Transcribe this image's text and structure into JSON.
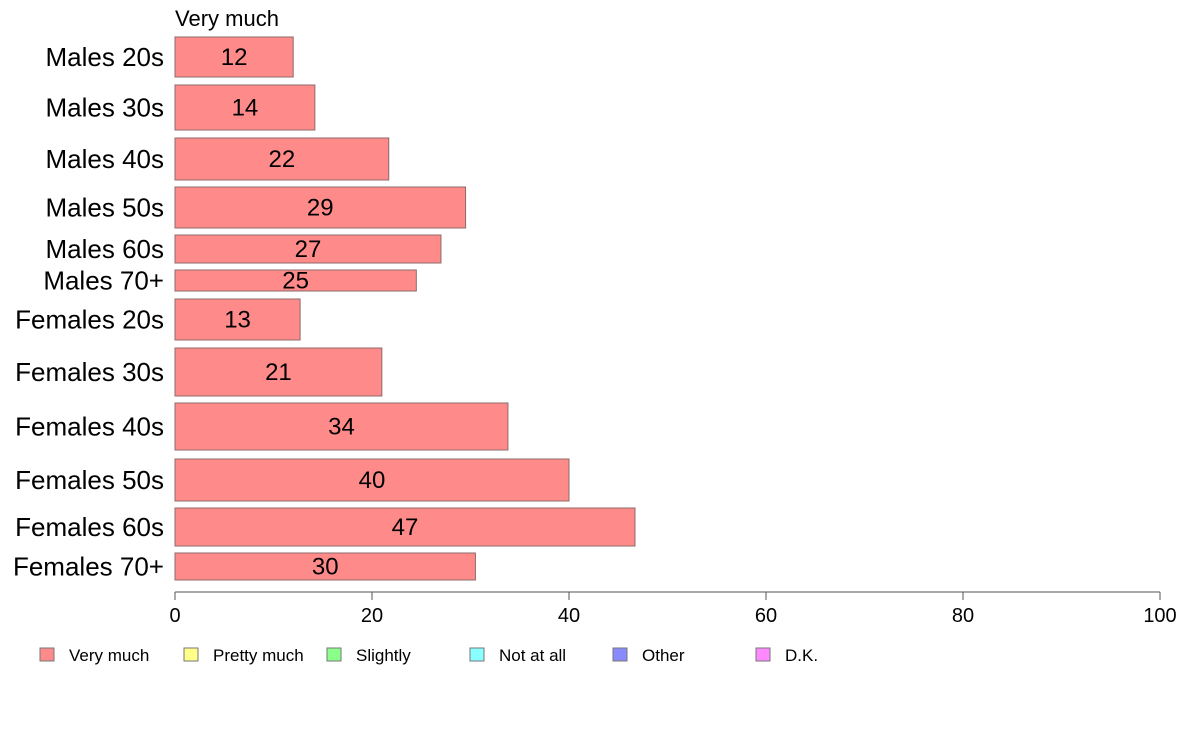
{
  "chart_data": {
    "type": "bar",
    "orientation": "horizontal",
    "stacked": true,
    "series_title": "Very much",
    "categories": [
      "Males 20s",
      "Males 30s",
      "Males 40s",
      "Males 50s",
      "Males 60s",
      "Males 70+",
      "Females 20s",
      "Females 30s",
      "Females 40s",
      "Females 50s",
      "Females 60s",
      "Females 70+"
    ],
    "series": [
      {
        "name": "Very much",
        "color": "#ff8a8a",
        "values": [
          12,
          14.2,
          21.7,
          29.5,
          27,
          24.5,
          12.7,
          21,
          33.8,
          40,
          46.7,
          30.5
        ],
        "labels": [
          "12",
          "14",
          "22",
          "29",
          "27",
          "25",
          "13",
          "21",
          "34",
          "40",
          "47",
          "30"
        ]
      }
    ],
    "xlim": [
      0,
      100
    ],
    "xticks": [
      0,
      20,
      40,
      60,
      80,
      100
    ],
    "grid": false,
    "legend": {
      "placement": "bottom",
      "items": [
        {
          "label": "Very much",
          "color": "#ff8a8a"
        },
        {
          "label": "Pretty much",
          "color": "#ffff8a"
        },
        {
          "label": "Slightly",
          "color": "#8aff8a"
        },
        {
          "label": "Not at all",
          "color": "#8affff"
        },
        {
          "label": "Other",
          "color": "#8a8aff"
        },
        {
          "label": "D.K.",
          "color": "#ff8aff"
        }
      ]
    }
  }
}
